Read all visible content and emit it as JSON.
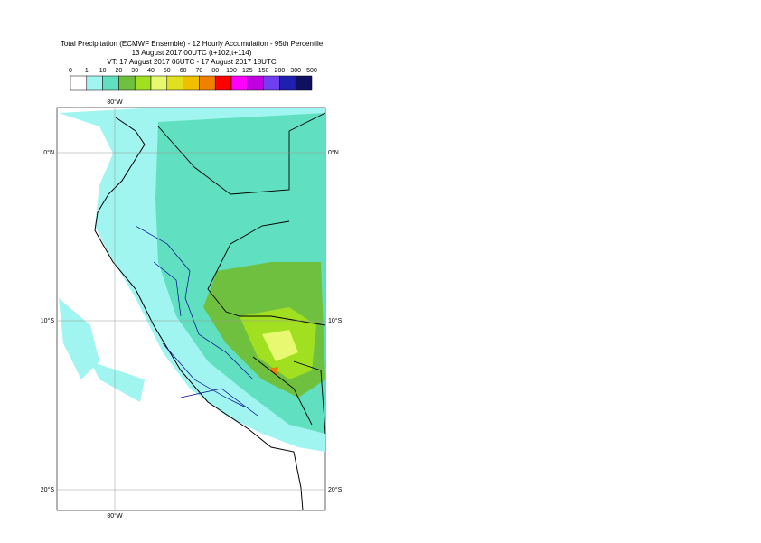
{
  "header": {
    "title_lines": [
      "Total Precipitation (ECMWF Ensemble) - 12 Hourly Accumulation - 95th Percentile",
      "13 August 2017 00UTC (t+102,t+114)",
      "VT: 17 August 2017 06UTC - 17 August 2017 18UTC"
    ]
  },
  "legend": {
    "ticks": [
      0,
      1,
      10,
      20,
      30,
      40,
      50,
      60,
      70,
      80,
      100,
      125,
      150,
      200,
      300,
      500
    ],
    "colors": [
      "#ffffff",
      "#a0f5f0",
      "#60e0c0",
      "#70c040",
      "#a0e020",
      "#e8f870",
      "#e0e020",
      "#f0c000",
      "#f08000",
      "#ff0000",
      "#ff00ff",
      "#c000e0",
      "#7040f0",
      "#2020b0",
      "#101060"
    ]
  },
  "map": {
    "lon_labels": [
      "80°W"
    ],
    "lat_labels": [
      "0°N",
      "10°S",
      "20°S"
    ]
  }
}
